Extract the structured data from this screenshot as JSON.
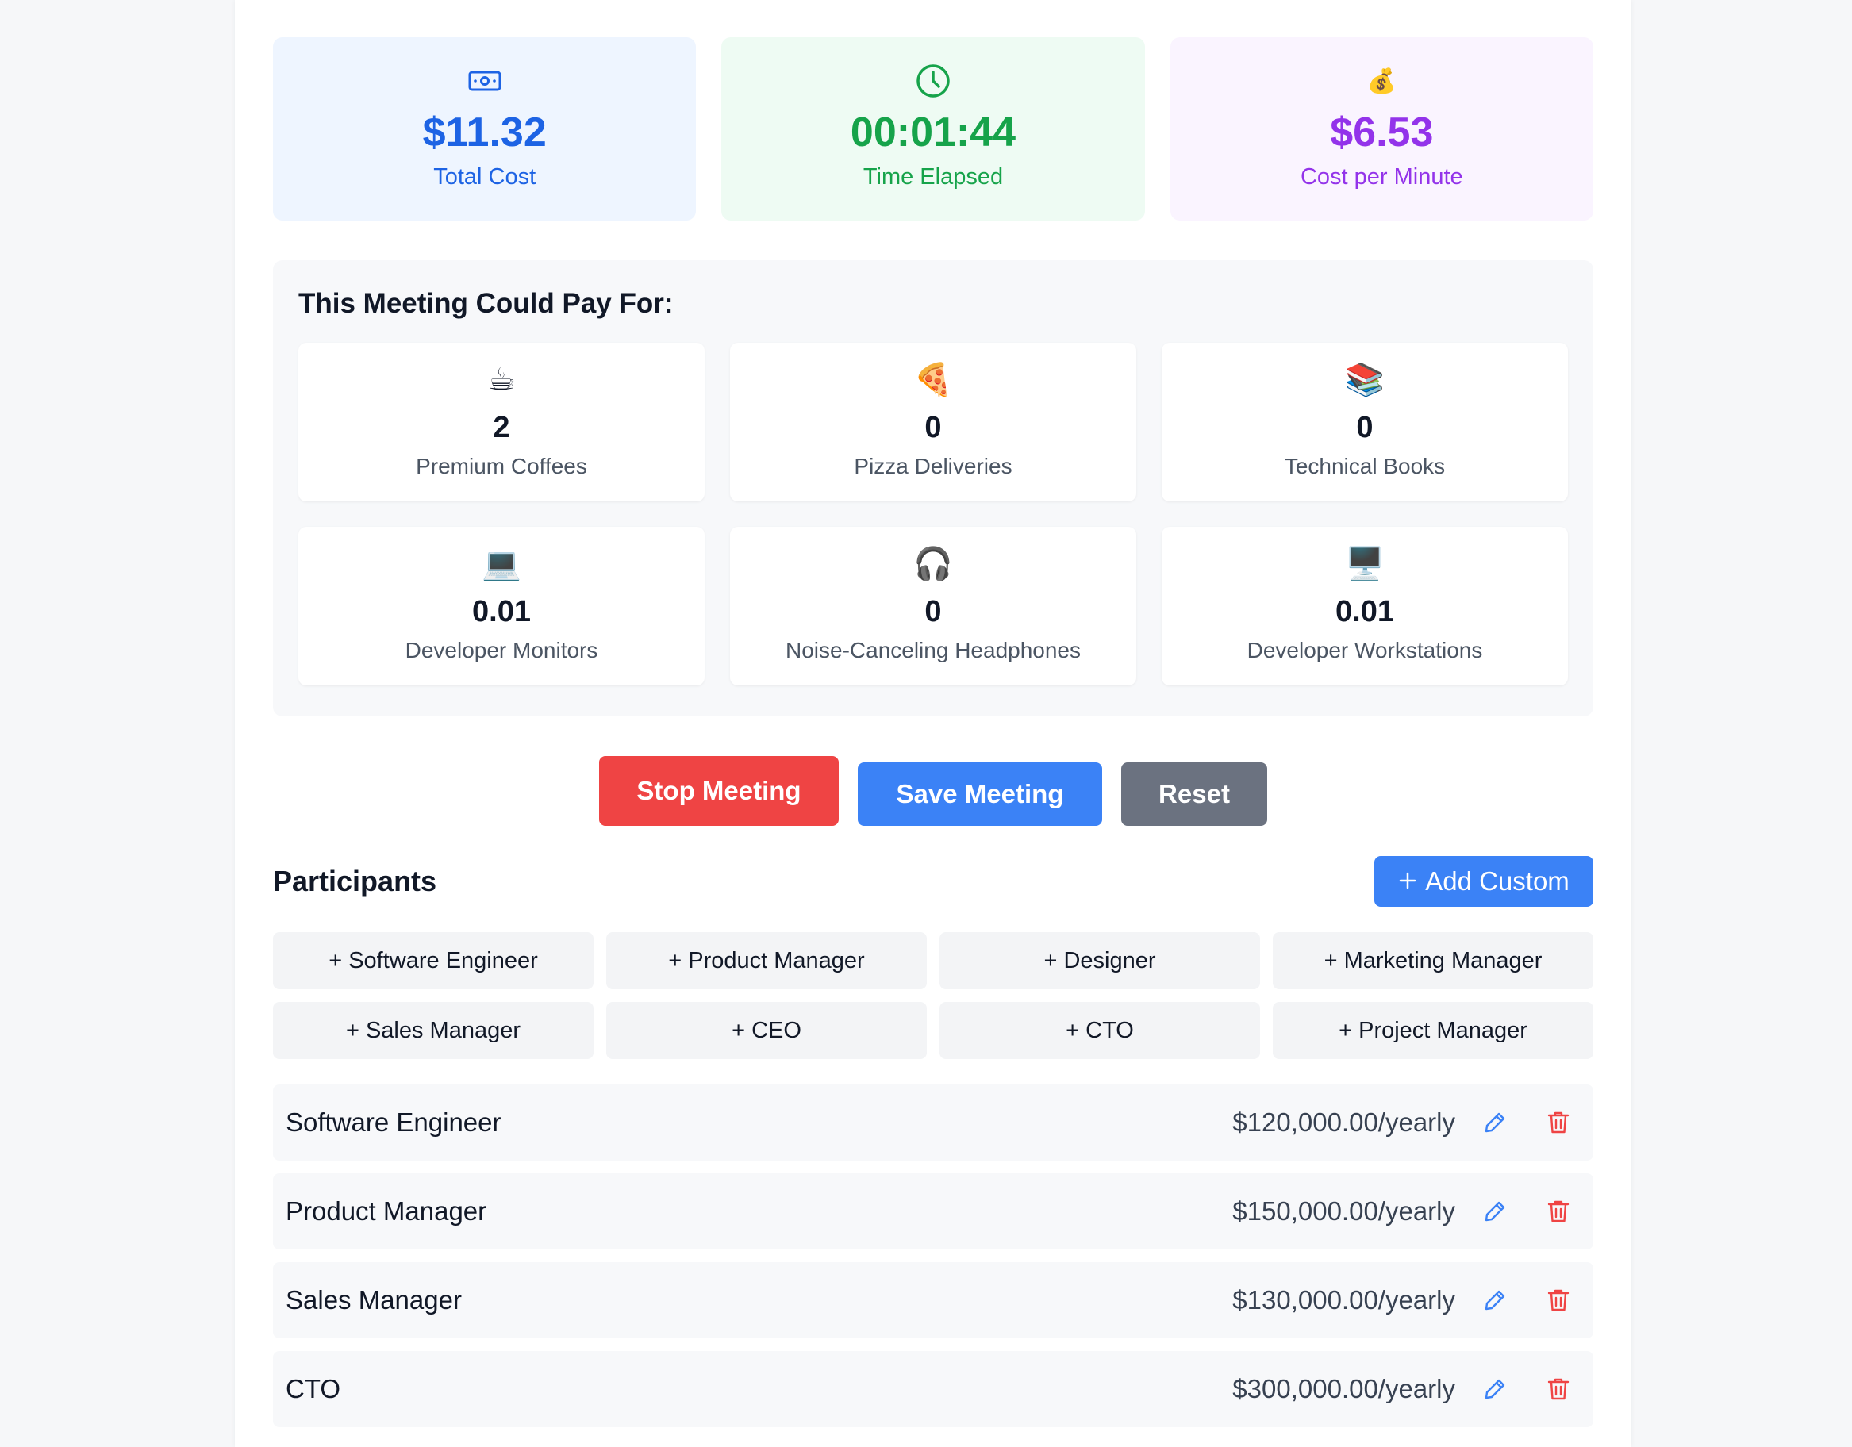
{
  "stats": {
    "total_cost": {
      "value": "$11.32",
      "label": "Total Cost",
      "icon": "money-bill-icon"
    },
    "time_elapsed": {
      "value": "00:01:44",
      "label": "Time Elapsed",
      "icon": "clock-icon"
    },
    "cost_per_minute": {
      "value": "$6.53",
      "label": "Cost per Minute",
      "icon": "money-bag-icon",
      "emoji": "💰"
    }
  },
  "could_pay": {
    "title": "This Meeting Could Pay For:",
    "items": [
      {
        "emoji": "☕",
        "icon": "coffee-icon",
        "value": "2",
        "label": "Premium Coffees"
      },
      {
        "emoji": "🍕",
        "icon": "pizza-icon",
        "value": "0",
        "label": "Pizza Deliveries"
      },
      {
        "emoji": "📚",
        "icon": "books-icon",
        "value": "0",
        "label": "Technical Books"
      },
      {
        "emoji": "💻",
        "icon": "laptop-icon",
        "value": "0.01",
        "label": "Developer Monitors"
      },
      {
        "emoji": "🎧",
        "icon": "headphones-icon",
        "value": "0",
        "label": "Noise-Canceling Headphones"
      },
      {
        "emoji": "🖥️",
        "icon": "desktop-computer-icon",
        "value": "0.01",
        "label": "Developer Workstations"
      }
    ]
  },
  "actions": {
    "stop_label": "Stop Meeting",
    "save_label": "Save Meeting",
    "reset_label": "Reset"
  },
  "participants": {
    "title": "Participants",
    "add_custom_label": "Add Custom",
    "roles": [
      "+ Software Engineer",
      "+ Product Manager",
      "+ Designer",
      "+ Marketing Manager",
      "+ Sales Manager",
      "+ CEO",
      "+ CTO",
      "+ Project Manager"
    ],
    "list": [
      {
        "name": "Software Engineer",
        "salary": "$120,000.00/yearly"
      },
      {
        "name": "Product Manager",
        "salary": "$150,000.00/yearly"
      },
      {
        "name": "Sales Manager",
        "salary": "$130,000.00/yearly"
      },
      {
        "name": "CTO",
        "salary": "$300,000.00/yearly"
      }
    ]
  },
  "colors": {
    "blue": "#1d63e4",
    "green": "#16a34a",
    "purple": "#9333ea",
    "danger": "#ef4444",
    "primary": "#3b82f6",
    "neutral": "#6b7280"
  }
}
